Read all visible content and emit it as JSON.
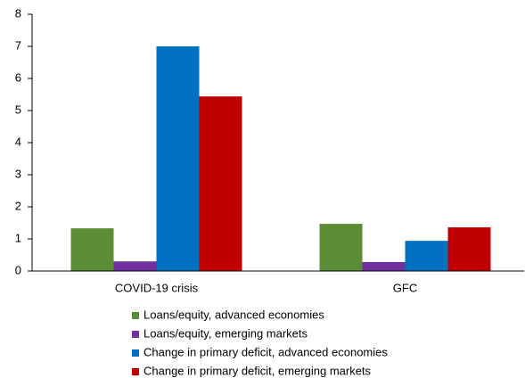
{
  "chart_data": {
    "type": "bar",
    "categories": [
      "COVID-19 crisis",
      "GFC"
    ],
    "series": [
      {
        "name": "Loans/equity, advanced economies",
        "color": "#5b8d37",
        "values": [
          1.33,
          1.47
        ]
      },
      {
        "name": "Loans/equity, emerging markets",
        "color": "#7030a0",
        "values": [
          0.3,
          0.28
        ]
      },
      {
        "name": "Change in primary deficit, advanced economies",
        "color": "#0070c0",
        "values": [
          7.0,
          0.94
        ]
      },
      {
        "name": "Change in primary deficit, emerging markets",
        "color": "#c00000",
        "values": [
          5.44,
          1.36
        ]
      }
    ],
    "ylim": [
      0,
      8
    ],
    "yticks": [
      0,
      1,
      2,
      3,
      4,
      5,
      6,
      7,
      8
    ],
    "grid": false,
    "legend": "bottom"
  }
}
